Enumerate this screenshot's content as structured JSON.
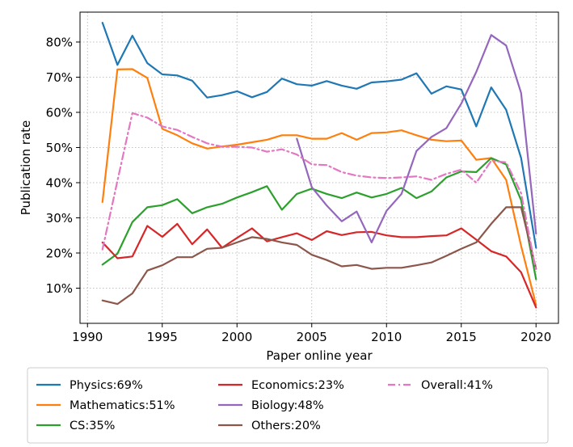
{
  "chart_data": {
    "type": "line",
    "xlabel": "Paper online year",
    "ylabel": "Publication rate",
    "xlim": [
      1989.5,
      2021.5
    ],
    "ylim": [
      0.0,
      0.885
    ],
    "xticks": [
      1990,
      1995,
      2000,
      2005,
      2010,
      2015,
      2020
    ],
    "yticks": [
      0.1,
      0.2,
      0.3,
      0.4,
      0.5,
      0.6,
      0.7,
      0.8
    ],
    "xtick_labels": [
      "1990",
      "1995",
      "2000",
      "2005",
      "2010",
      "2015",
      "2020"
    ],
    "ytick_labels": [
      "10%",
      "20%",
      "30%",
      "40%",
      "50%",
      "60%",
      "70%",
      "80%"
    ],
    "grid": true,
    "legend_position": "bottom",
    "series": [
      {
        "name": "Physics:69%",
        "color": "#1f77b4",
        "style": "solid",
        "x": [
          1991,
          1992,
          1993,
          1994,
          1995,
          1996,
          1997,
          1998,
          1999,
          2000,
          2001,
          2002,
          2003,
          2004,
          2005,
          2006,
          2007,
          2008,
          2009,
          2010,
          2011,
          2012,
          2013,
          2014,
          2015,
          2016,
          2017,
          2018,
          2019,
          2020
        ],
        "y": [
          0.855,
          0.735,
          0.818,
          0.74,
          0.708,
          0.705,
          0.69,
          0.642,
          0.649,
          0.66,
          0.643,
          0.658,
          0.696,
          0.68,
          0.676,
          0.689,
          0.676,
          0.667,
          0.685,
          0.688,
          0.693,
          0.711,
          0.653,
          0.674,
          0.665,
          0.56,
          0.671,
          0.607,
          0.47,
          0.215
        ]
      },
      {
        "name": "Mathematics:51%",
        "color": "#ff7f0e",
        "style": "solid",
        "x": [
          1991,
          1992,
          1993,
          1994,
          1995,
          1996,
          1997,
          1998,
          1999,
          2000,
          2001,
          2002,
          2003,
          2004,
          2005,
          2006,
          2007,
          2008,
          2009,
          2010,
          2011,
          2012,
          2013,
          2014,
          2015,
          2016,
          2017,
          2018,
          2019,
          2020
        ],
        "y": [
          0.345,
          0.722,
          0.723,
          0.698,
          0.553,
          0.535,
          0.512,
          0.497,
          0.503,
          0.508,
          0.515,
          0.522,
          0.535,
          0.535,
          0.525,
          0.525,
          0.541,
          0.522,
          0.541,
          0.543,
          0.549,
          0.535,
          0.522,
          0.518,
          0.52,
          0.465,
          0.47,
          0.408,
          0.22,
          0.052
        ]
      },
      {
        "name": "CS:35%",
        "color": "#2ca02c",
        "style": "solid",
        "x": [
          1991,
          1992,
          1993,
          1994,
          1995,
          1996,
          1997,
          1998,
          1999,
          2000,
          2001,
          2002,
          2003,
          2004,
          2005,
          2006,
          2007,
          2008,
          2009,
          2010,
          2011,
          2012,
          2013,
          2014,
          2015,
          2016,
          2017,
          2018,
          2019,
          2020
        ],
        "y": [
          0.167,
          0.198,
          0.288,
          0.33,
          0.336,
          0.353,
          0.313,
          0.33,
          0.34,
          0.358,
          0.373,
          0.39,
          0.323,
          0.368,
          0.383,
          0.368,
          0.356,
          0.372,
          0.358,
          0.368,
          0.385,
          0.356,
          0.375,
          0.415,
          0.432,
          0.43,
          0.47,
          0.452,
          0.35,
          0.125
        ]
      },
      {
        "name": "Economics:23%",
        "color": "#d62728",
        "style": "solid",
        "x": [
          1991,
          1992,
          1993,
          1994,
          1995,
          1996,
          1997,
          1998,
          1999,
          2000,
          2001,
          2002,
          2003,
          2004,
          2005,
          2006,
          2007,
          2008,
          2009,
          2010,
          2011,
          2012,
          2013,
          2014,
          2015,
          2016,
          2017,
          2018,
          2019,
          2020
        ],
        "y": [
          0.23,
          0.185,
          0.19,
          0.277,
          0.246,
          0.283,
          0.225,
          0.267,
          0.215,
          0.243,
          0.27,
          0.233,
          0.245,
          0.256,
          0.237,
          0.262,
          0.251,
          0.259,
          0.26,
          0.25,
          0.245,
          0.245,
          0.248,
          0.25,
          0.27,
          0.238,
          0.205,
          0.19,
          0.145,
          0.045
        ]
      },
      {
        "name": "Biology:48%",
        "color": "#9467bd",
        "style": "solid",
        "x": [
          2004,
          2005,
          2006,
          2007,
          2008,
          2009,
          2010,
          2011,
          2012,
          2013,
          2014,
          2015,
          2016,
          2017,
          2018,
          2019,
          2020
        ],
        "y": [
          0.525,
          0.387,
          0.335,
          0.29,
          0.318,
          0.23,
          0.32,
          0.368,
          0.49,
          0.53,
          0.555,
          0.625,
          0.715,
          0.82,
          0.79,
          0.655,
          0.255
        ]
      },
      {
        "name": "Others:20%",
        "color": "#8c564b",
        "style": "solid",
        "x": [
          1991,
          1992,
          1993,
          1994,
          1995,
          1996,
          1997,
          1998,
          1999,
          2000,
          2001,
          2002,
          2003,
          2004,
          2005,
          2006,
          2007,
          2008,
          2009,
          2010,
          2011,
          2012,
          2013,
          2014,
          2015,
          2016,
          2017,
          2018,
          2019,
          2020
        ],
        "y": [
          0.065,
          0.055,
          0.085,
          0.15,
          0.165,
          0.188,
          0.188,
          0.212,
          0.215,
          0.23,
          0.245,
          0.24,
          0.23,
          0.223,
          0.195,
          0.18,
          0.162,
          0.166,
          0.155,
          0.158,
          0.158,
          0.165,
          0.173,
          0.192,
          0.212,
          0.23,
          0.283,
          0.33,
          0.33,
          0.155
        ]
      },
      {
        "name": "Overall:41%",
        "color": "#e377c2",
        "style": "dashdot",
        "x": [
          1991,
          1992,
          1993,
          1994,
          1995,
          1996,
          1997,
          1998,
          1999,
          2000,
          2001,
          2002,
          2003,
          2004,
          2005,
          2006,
          2007,
          2008,
          2009,
          2010,
          2011,
          2012,
          2013,
          2014,
          2015,
          2016,
          2017,
          2018,
          2019,
          2020
        ],
        "y": [
          0.21,
          0.405,
          0.598,
          0.585,
          0.56,
          0.55,
          0.53,
          0.512,
          0.502,
          0.502,
          0.5,
          0.488,
          0.495,
          0.48,
          0.452,
          0.45,
          0.43,
          0.42,
          0.415,
          0.413,
          0.415,
          0.418,
          0.408,
          0.425,
          0.437,
          0.4,
          0.462,
          0.458,
          0.37,
          0.148
        ]
      }
    ]
  }
}
